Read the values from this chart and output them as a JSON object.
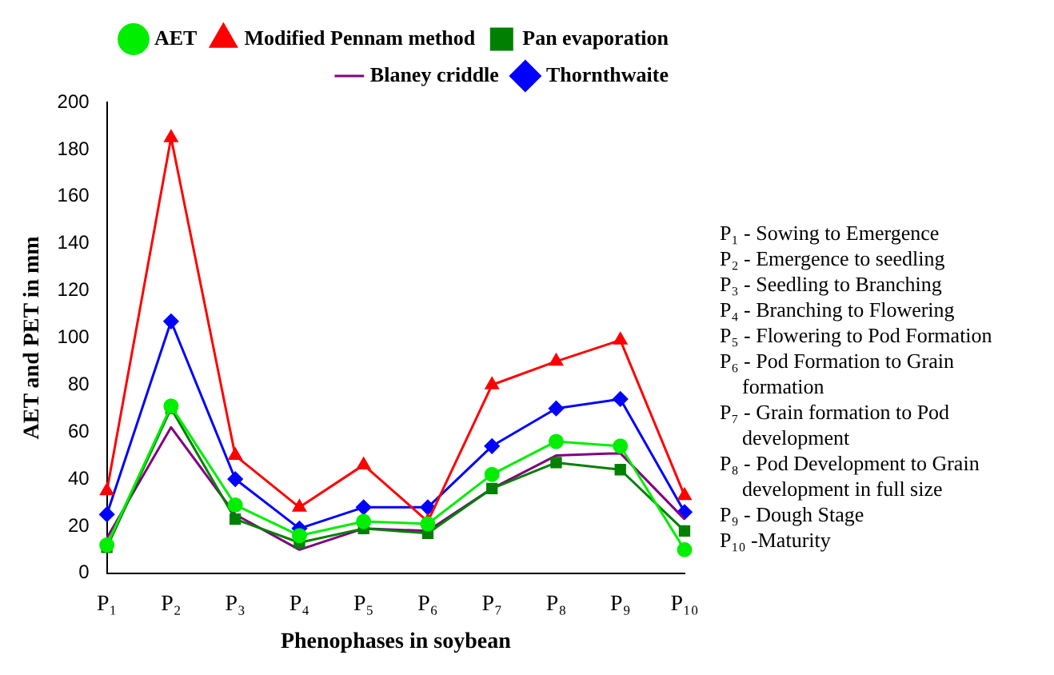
{
  "chart_data": {
    "type": "line",
    "xlabel": "Phenophases in soybean",
    "ylabel": "AET and PET in mm",
    "categories": [
      "P₁",
      "P₂",
      "P₃",
      "P₄",
      "P₅",
      "P₆",
      "P₇",
      "P₈",
      "P₉",
      "P₁₀"
    ],
    "series": [
      {
        "name": "AET",
        "color": "#00ee00",
        "marker": "circle",
        "values": [
          12,
          71,
          29,
          16,
          22,
          21,
          42,
          56,
          54,
          10
        ]
      },
      {
        "name": "Modified Pennam method",
        "color": "#ff0000",
        "marker": "triangle",
        "values": [
          35,
          185,
          50,
          28,
          46,
          22,
          80,
          90,
          99,
          33
        ]
      },
      {
        "name": "Pan evaporation",
        "color": "#008000",
        "marker": "square",
        "values": [
          11,
          70,
          23,
          13,
          19,
          17,
          36,
          47,
          44,
          18
        ]
      },
      {
        "name": "Blaney criddle",
        "color": "#800080",
        "marker": "none",
        "values": [
          15,
          62,
          25,
          10,
          19,
          18,
          36,
          50,
          51,
          23
        ]
      },
      {
        "name": "Thornthwaite",
        "color": "#0000ff",
        "marker": "diamond",
        "values": [
          25,
          107,
          40,
          19,
          28,
          28,
          54,
          70,
          74,
          26
        ]
      }
    ],
    "ylim": [
      0,
      200
    ],
    "yticks": [
      0,
      20,
      40,
      60,
      80,
      100,
      120,
      140,
      160,
      180,
      200
    ],
    "grid": false,
    "legend": "top right",
    "annotations": [
      "P₁ - Sowing to Emergence",
      "P₂ - Emergence to seedling",
      "P₃ - Seedling to Branching",
      "P₄ - Branching to Flowering",
      "P₅ - Flowering to Pod Formation",
      "P₆ - Pod  Formation to Grain formation",
      "P₇ - Grain formation to Pod development",
      "P₈ - Pod  Development to Grain development in full size",
      "P₉ - Dough Stage",
      "P₁₀ -Maturity"
    ]
  }
}
